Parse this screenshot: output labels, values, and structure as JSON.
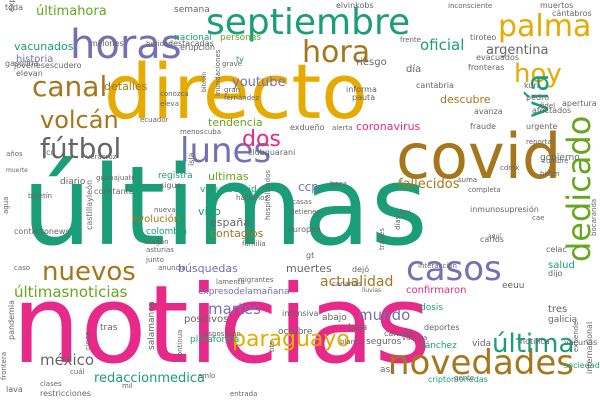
{
  "palette": {
    "teal": "#1b9e77",
    "orange": "#d95f02",
    "purple": "#7570b3",
    "magenta": "#e7298a",
    "green": "#66a61e",
    "gold": "#e6ab02",
    "brown": "#a6761d",
    "gray": "#666666"
  },
  "words": [
    {
      "text": "últimas",
      "color": "teal"
    },
    {
      "text": "noticias",
      "color": "magenta"
    },
    {
      "text": "directo",
      "color": "gold"
    },
    {
      "text": "covid",
      "color": "brown"
    },
    {
      "text": "septiembre",
      "color": "teal"
    },
    {
      "text": "horas",
      "color": "purple"
    },
    {
      "text": "dedicado",
      "color": "green"
    },
    {
      "text": "novedades",
      "color": "brown"
    },
    {
      "text": "palma",
      "color": "gold"
    },
    {
      "text": "canal",
      "color": "brown"
    },
    {
      "text": "casos",
      "color": "purple"
    },
    {
      "text": "lunes",
      "color": "purple"
    },
    {
      "text": "nuevos",
      "color": "brown"
    },
    {
      "text": "fútbol",
      "color": "gray"
    },
    {
      "text": "volcán",
      "color": "brown"
    },
    {
      "text": "hora",
      "color": "brown"
    },
    {
      "text": "hoy",
      "color": "gold"
    },
    {
      "text": "paraguayo",
      "color": "gold"
    },
    {
      "text": "última",
      "color": "teal"
    },
    {
      "text": "vía",
      "color": "teal"
    },
    {
      "text": "últimahora",
      "color": "green"
    },
    {
      "text": "últimasnoticias",
      "color": "green"
    },
    {
      "text": "dos",
      "color": "magenta"
    },
    {
      "text": "méxico",
      "color": "gray"
    },
    {
      "text": "oficial",
      "color": "teal"
    },
    {
      "text": "argentina",
      "color": "gray"
    },
    {
      "text": "actualidad",
      "color": "brown"
    },
    {
      "text": "mundo",
      "color": "purple"
    },
    {
      "text": "redaccionmedica",
      "color": "teal"
    },
    {
      "text": "fallecidos",
      "color": "brown"
    },
    {
      "text": "martes",
      "color": "purple"
    },
    {
      "text": "youtube",
      "color": "purple"
    },
    {
      "text": "vacunados",
      "color": "teal"
    },
    {
      "text": "historia",
      "color": "purple"
    },
    {
      "text": "detalles",
      "color": "brown"
    },
    {
      "text": "tendencia",
      "color": "green"
    },
    {
      "text": "riesgo",
      "color": "gray"
    },
    {
      "text": "coronavirus",
      "color": "magenta"
    },
    {
      "text": "descubre",
      "color": "brown"
    },
    {
      "text": "ultimas",
      "color": "green"
    },
    {
      "text": "ccp",
      "color": "purple"
    },
    {
      "text": "muertes",
      "color": "gray"
    },
    {
      "text": "vivo",
      "color": "teal"
    },
    {
      "text": "españa",
      "color": "gray"
    },
    {
      "text": "contagios",
      "color": "brown"
    },
    {
      "text": "búsquedas",
      "color": "purple"
    },
    {
      "text": "semana",
      "color": "gray"
    },
    {
      "text": "nacional",
      "color": "teal"
    },
    {
      "text": "personas",
      "color": "green"
    },
    {
      "text": "evolución",
      "color": "brown"
    },
    {
      "text": "registra",
      "color": "teal"
    },
    {
      "text": "colombia",
      "color": "teal"
    },
    {
      "text": "positivos",
      "color": "gray"
    },
    {
      "text": "confirmaron",
      "color": "magenta"
    },
    {
      "text": "tres",
      "color": "gray"
    },
    {
      "text": "salud",
      "color": "teal"
    },
    {
      "text": "eeuu",
      "color": "gray"
    },
    {
      "text": "galicia",
      "color": "gray"
    },
    {
      "text": "diario",
      "color": "gray"
    },
    {
      "text": "gobierno",
      "color": "gray"
    },
    {
      "text": "expresodelamañana",
      "color": "purple"
    },
    {
      "text": "abajo",
      "color": "gray"
    },
    {
      "text": "así",
      "color": "gray"
    },
    {
      "text": "baja",
      "color": "gray"
    },
    {
      "text": "sánchez",
      "color": "teal"
    },
    {
      "text": "plataforma",
      "color": "teal"
    },
    {
      "text": "octubre",
      "color": "gray"
    },
    {
      "text": "dosis",
      "color": "teal"
    },
    {
      "text": "tras",
      "color": "gray"
    },
    {
      "text": "vida",
      "color": "gray"
    },
    {
      "text": "seguros",
      "color": "gray"
    },
    {
      "text": "salamanca",
      "color": "gray"
    },
    {
      "text": "vacunacovid",
      "color": "teal"
    },
    {
      "text": "pandemia",
      "color": "gray"
    },
    {
      "text": "restricciones",
      "color": "gray"
    },
    {
      "text": "criptomonedas",
      "color": "teal"
    },
    {
      "text": "sociedad",
      "color": "teal"
    },
    {
      "text": "internacional",
      "color": "gray"
    },
    {
      "text": "deportes",
      "color": "gray"
    },
    {
      "text": "notifica",
      "color": "gray"
    },
    {
      "text": "vacunas",
      "color": "gray"
    },
    {
      "text": "gasolina",
      "color": "gray"
    },
    {
      "text": "toda",
      "color": "gray"
    },
    {
      "text": "explosivo",
      "color": "gray"
    },
    {
      "text": "jóvenesescudero",
      "color": "gray"
    },
    {
      "text": "elevan",
      "color": "gray"
    },
    {
      "text": "millones",
      "color": "gray"
    },
    {
      "text": "heridos",
      "color": "gray"
    },
    {
      "text": "erupción",
      "color": "gray"
    },
    {
      "text": "muertos",
      "color": "gray"
    },
    {
      "text": "cántabros",
      "color": "gray"
    },
    {
      "text": "tiroteo",
      "color": "gray"
    },
    {
      "text": "evacuados",
      "color": "gray"
    },
    {
      "text": "fronteras",
      "color": "gray"
    },
    {
      "text": "frente",
      "color": "gray"
    },
    {
      "text": "inconsciente",
      "color": "gray"
    },
    {
      "text": "elvinkobs",
      "color": "gray"
    },
    {
      "text": "destacadas",
      "color": "gray"
    },
    {
      "text": "día",
      "color": "gray"
    },
    {
      "text": "tv",
      "color": "teal"
    },
    {
      "text": "grave",
      "color": "gray"
    },
    {
      "text": "inundaciones",
      "color": "gray"
    },
    {
      "text": "bitcoin",
      "color": "gray"
    },
    {
      "text": "conozca",
      "color": "gray"
    },
    {
      "text": "eleva",
      "color": "gray"
    },
    {
      "text": "gran",
      "color": "gray"
    },
    {
      "text": "fernández",
      "color": "gray"
    },
    {
      "text": "informa",
      "color": "gray"
    },
    {
      "text": "pauta",
      "color": "gray"
    },
    {
      "text": "cantabria",
      "color": "gray"
    },
    {
      "text": "kuri",
      "color": "gray"
    },
    {
      "text": "apertura",
      "color": "gray"
    },
    {
      "text": "pedro",
      "color": "gray"
    },
    {
      "text": "afectados",
      "color": "gray"
    },
    {
      "text": "fidel",
      "color": "gray"
    },
    {
      "text": "avanza",
      "color": "gray"
    },
    {
      "text": "fraude",
      "color": "gray"
    },
    {
      "text": "urgente",
      "color": "gray"
    },
    {
      "text": "menos",
      "color": "gray"
    },
    {
      "text": "cuba",
      "color": "gray"
    },
    {
      "text": "ecuador",
      "color": "gray"
    },
    {
      "text": "exdueño",
      "color": "gray"
    },
    {
      "text": "alerta",
      "color": "gray"
    },
    {
      "text": "co",
      "color": "gray"
    },
    {
      "text": "veracruz",
      "color": "gray"
    },
    {
      "text": "clubguarani",
      "color": "gray"
    },
    {
      "text": "isla",
      "color": "gray"
    },
    {
      "text": "años",
      "color": "gray"
    },
    {
      "text": "muerte",
      "color": "gray"
    },
    {
      "text": "agua",
      "color": "gray"
    },
    {
      "text": "boletín",
      "color": "gray"
    },
    {
      "text": "sigue",
      "color": "gray"
    },
    {
      "text": "guanajuato",
      "color": "gray"
    },
    {
      "text": "boca",
      "color": "gray"
    },
    {
      "text": "completa",
      "color": "gray"
    },
    {
      "text": "suma",
      "color": "gray"
    },
    {
      "text": "cdmx",
      "color": "gray"
    },
    {
      "text": "reporta",
      "color": "gray"
    },
    {
      "text": "cumbre",
      "color": "gray"
    },
    {
      "text": "biden",
      "color": "gray"
    },
    {
      "text": "constante",
      "color": "gray"
    },
    {
      "text": "nueva",
      "color": "gray"
    },
    {
      "text": "aragón",
      "color": "gray"
    },
    {
      "text": "asturias",
      "color": "gray"
    },
    {
      "text": "castillayleón",
      "color": "gray"
    },
    {
      "text": "haitianos",
      "color": "gray"
    },
    {
      "text": "casas",
      "color": "gray"
    },
    {
      "text": "detienen",
      "color": "gray"
    },
    {
      "text": "europea",
      "color": "gray"
    },
    {
      "text": "días",
      "color": "gray"
    },
    {
      "text": "inmunosupresión",
      "color": "gray"
    },
    {
      "text": "ley",
      "color": "gray"
    },
    {
      "text": "cae",
      "color": "gray"
    },
    {
      "text": "bocaranda",
      "color": "gray"
    },
    {
      "text": "hospitalizados",
      "color": "gray"
    },
    {
      "text": "gt",
      "color": "gray"
    },
    {
      "text": "través",
      "color": "gray"
    },
    {
      "text": "carlos",
      "color": "gray"
    },
    {
      "text": "aquí",
      "color": "gray"
    },
    {
      "text": "celac",
      "color": "gray"
    },
    {
      "text": "dijo",
      "color": "gray"
    },
    {
      "text": "interacción",
      "color": "gray"
    },
    {
      "text": "junto",
      "color": "gray"
    },
    {
      "text": "anuncia",
      "color": "gray"
    },
    {
      "text": "dejó",
      "color": "gray"
    },
    {
      "text": "migrantes",
      "color": "gray"
    },
    {
      "text": "lamenta",
      "color": "gray"
    },
    {
      "text": "canarias",
      "color": "gray"
    },
    {
      "text": "lluvias",
      "color": "gray"
    },
    {
      "text": "contactonews",
      "color": "gray"
    },
    {
      "text": "caso",
      "color": "gray"
    },
    {
      "text": "intensiva",
      "color": "gray"
    },
    {
      "text": "lava",
      "color": "gray"
    },
    {
      "text": "frontera",
      "color": "gray"
    },
    {
      "text": "cuál",
      "color": "gray"
    },
    {
      "text": "clases",
      "color": "gray"
    },
    {
      "text": "mil",
      "color": "gray"
    },
    {
      "text": "cinco",
      "color": "gray"
    },
    {
      "text": "continua",
      "color": "gray"
    },
    {
      "text": "disposición",
      "color": "gray"
    },
    {
      "text": "bts",
      "color": "gray"
    },
    {
      "text": "blanco",
      "color": "gray"
    },
    {
      "text": "canadá",
      "color": "gray"
    },
    {
      "text": "amlo",
      "color": "gray"
    },
    {
      "text": "vacuna",
      "color": "gray"
    },
    {
      "text": "gente",
      "color": "gray"
    },
    {
      "text": "extiende",
      "color": "gray"
    },
    {
      "text": "entrada",
      "color": "gray"
    },
    {
      "text": "familia",
      "color": "gray"
    },
    {
      "text": "antioquia",
      "color": "gray"
    }
  ]
}
